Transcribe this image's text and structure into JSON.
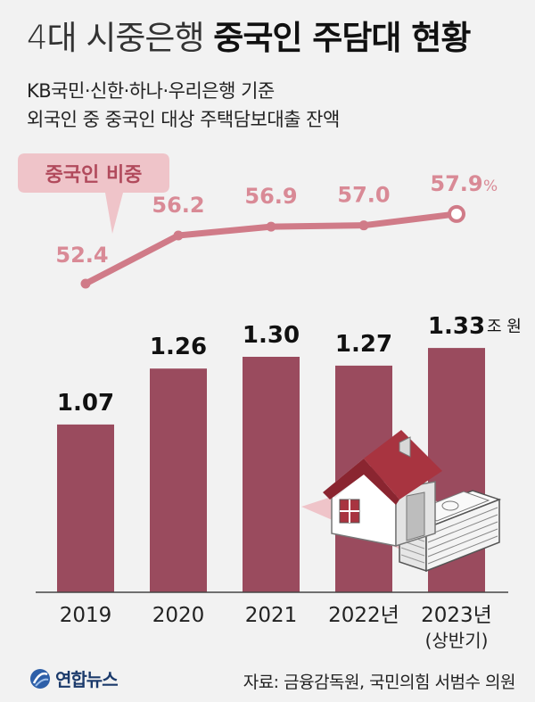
{
  "header": {
    "title_light": "4대 시중은행",
    "title_bold": "중국인 주담대 현황",
    "subtitle_line1": "KB국민·신한·하나·우리은행 기준",
    "subtitle_line2": "외국인 중 중국인 대상 주택담보대출 잔액"
  },
  "chart_data": {
    "type": "bar",
    "categories": [
      "2019",
      "2020",
      "2021",
      "2022년",
      "2023년"
    ],
    "category_notes": [
      "",
      "",
      "",
      "",
      "(상반기)"
    ],
    "bar_series": {
      "values": [
        1.07,
        1.26,
        1.3,
        1.27,
        1.33
      ],
      "labels": [
        "1.07",
        "1.26",
        "1.30",
        "1.27",
        "1.33"
      ],
      "unit": "조 원",
      "color": "#9a4b5e"
    },
    "line_series": {
      "name": "중국인 비중",
      "values": [
        52.4,
        56.2,
        56.9,
        57.0,
        57.9
      ],
      "labels": [
        "52.4",
        "56.2",
        "56.9",
        "57.0",
        "57.9"
      ],
      "unit": "%",
      "color": "#d07b88"
    }
  },
  "colors": {
    "background": "#f2f2f2",
    "bar": "#9a4b5e",
    "line": "#d07b88",
    "line_label": "#d98a96",
    "callout_bg": "#efc4c9"
  },
  "illustration": {
    "icon": "house-and-money-icon"
  },
  "footer": {
    "logo_icon": "yonhap-globe-icon",
    "logo_text": "연합뉴스",
    "source": "자료: 금융감독원, 국민의힘 서범수 의원"
  }
}
